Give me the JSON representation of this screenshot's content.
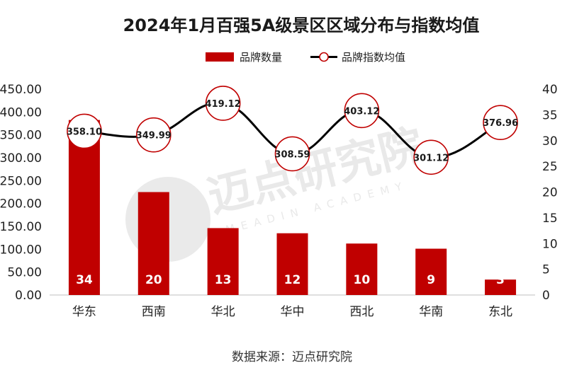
{
  "chart_data": {
    "type": "bar+line",
    "title": "2024年1月百强5A级景区区域分布与指数均值",
    "categories": [
      "华东",
      "西南",
      "华北",
      "华中",
      "西北",
      "华南",
      "东北"
    ],
    "series": [
      {
        "name": "品牌数量",
        "type": "bar",
        "axis": "right",
        "values": [
          34,
          20,
          13,
          12,
          10,
          9,
          3
        ],
        "color": "#c00000"
      },
      {
        "name": "品牌指数均值",
        "type": "line",
        "axis": "left",
        "values": [
          358.1,
          349.99,
          419.12,
          308.59,
          403.12,
          301.12,
          376.96
        ],
        "color": "#000000",
        "marker_color": "#c00000"
      }
    ],
    "y_left": {
      "min": 0,
      "max": 450,
      "step": 50,
      "ticks": [
        "0.00",
        "50.00",
        "100.00",
        "150.00",
        "200.00",
        "250.00",
        "300.00",
        "350.00",
        "400.00",
        "450.00"
      ]
    },
    "y_right": {
      "min": 0,
      "max": 40,
      "step": 5,
      "ticks": [
        "0",
        "5",
        "10",
        "15",
        "20",
        "25",
        "30",
        "35",
        "40"
      ]
    },
    "legend": {
      "position": "top-right",
      "items": [
        "品牌数量",
        "品牌指数均值"
      ]
    },
    "grid": false,
    "source": "数据来源：迈点研究院"
  },
  "watermark": {
    "text": "迈点研究院",
    "subtext": "MEADIN ACADEMY"
  }
}
